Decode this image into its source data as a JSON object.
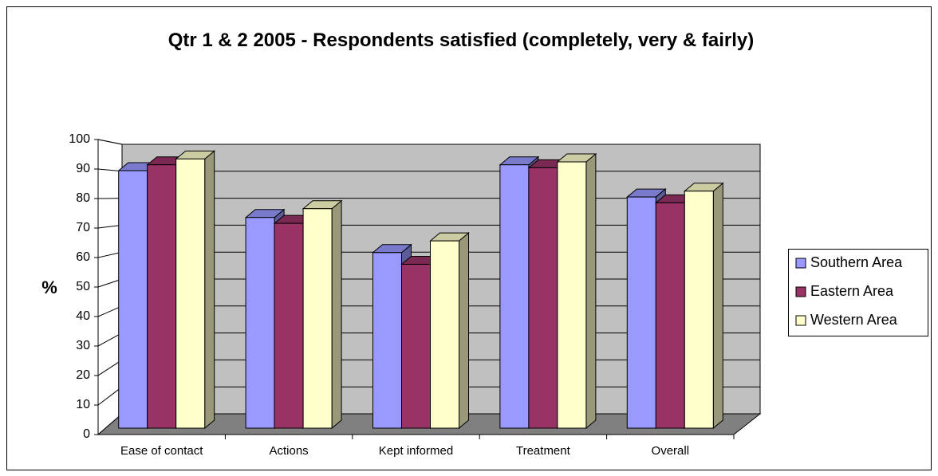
{
  "chart_data": {
    "type": "bar3d",
    "title": "Qtr 1 & 2 2005 - Respondents satisfied (completely, very & fairly)",
    "y_label": "%",
    "categories": [
      "Ease of contact",
      "Actions",
      "Kept informed",
      "Treatment",
      "Overall"
    ],
    "series": [
      {
        "name": "Southern Area",
        "color": "#9999ff",
        "values": [
          88,
          72,
          60,
          90,
          79
        ]
      },
      {
        "name": "Eastern Area",
        "color": "#993366",
        "values": [
          90,
          70,
          56,
          89,
          77
        ]
      },
      {
        "name": "Western Area",
        "color": "#ffffcc",
        "values": [
          92,
          75,
          64,
          91,
          81
        ]
      }
    ],
    "ylim": [
      0,
      100
    ],
    "yticks": [
      0,
      10,
      20,
      30,
      40,
      50,
      60,
      70,
      80,
      90,
      100
    ],
    "grid": true,
    "legend": "right"
  }
}
